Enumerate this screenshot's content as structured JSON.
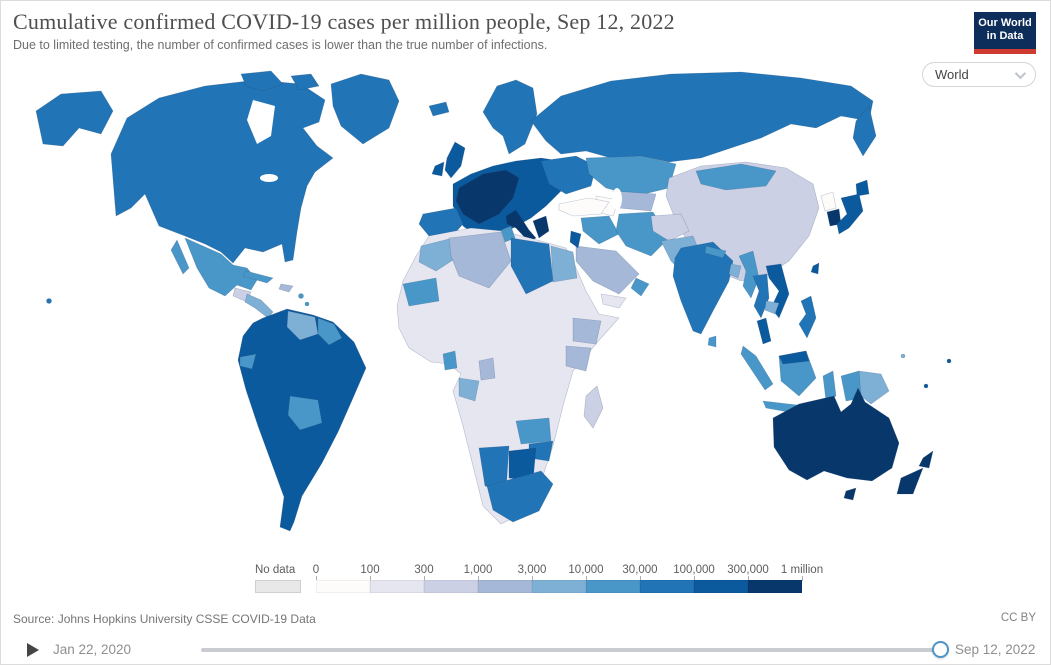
{
  "header": {
    "title": "Cumulative confirmed COVID-19 cases per million people, Sep 12, 2022",
    "subtitle": "Due to limited testing, the number of confirmed cases is lower than the true number of infections."
  },
  "logo": {
    "line1": "Our World",
    "line2": "in Data",
    "bg_color": "#0d2e5b",
    "accent_color": "#cf3a31"
  },
  "controls": {
    "region_selector_value": "World"
  },
  "footer": {
    "source": "Source: Johns Hopkins University CSSE COVID-19 Data",
    "license": "CC BY"
  },
  "timeline": {
    "start_label": "Jan 22, 2020",
    "end_label": "Sep 12, 2022",
    "position_pct": 100
  },
  "chart_data": {
    "type": "choropleth",
    "metric": "Cumulative confirmed COVID-19 cases per million people",
    "date": "Sep 12, 2022",
    "legend_ticks": [
      "0",
      "100",
      "300",
      "1,000",
      "3,000",
      "10,000",
      "30,000",
      "100,000",
      "300,000",
      "1 million"
    ],
    "no_data": {
      "label": "No data",
      "color": "#e8e8e8"
    },
    "bins": [
      {
        "range": "0-100",
        "color": "#fefcfb"
      },
      {
        "range": "100-300",
        "color": "#e6e6f1"
      },
      {
        "range": "300-1,000",
        "color": "#ccd0e5"
      },
      {
        "range": "1,000-3,000",
        "color": "#a6b8d8"
      },
      {
        "range": "3,000-10,000",
        "color": "#7eb0d6"
      },
      {
        "range": "10,000-30,000",
        "color": "#4897c8"
      },
      {
        "range": "30,000-100,000",
        "color": "#2174b5"
      },
      {
        "range": "100,000-300,000",
        "color": "#0c5a9e"
      },
      {
        "range": "300,000-1 million",
        "color": "#08386b"
      }
    ],
    "region_bins": {
      "alaska": 6,
      "canada-us": 6,
      "arctic-1": 6,
      "arctic-2": 6,
      "greenland": 6,
      "mexico": 5,
      "baja-california": 5,
      "guatemala": 2,
      "central-america": 4,
      "panama-costa-rica": 6,
      "cuba": 5,
      "hispaniola": 3,
      "caribbean-1": 5,
      "caribbean-2": 5,
      "hawaii": 6,
      "south-america": 7,
      "venezuela": 4,
      "guyanas": 5,
      "bolivia": 5,
      "ecuador": 5,
      "iceland": 6,
      "united-kingdom": 7,
      "ireland": 7,
      "scandinavia": 6,
      "europe-mainland": 7,
      "western-europe-core": 8,
      "italy": 8,
      "greece": 8,
      "iberia": 6,
      "eastern-europe": 6,
      "russia": 6,
      "kazakhstan": 5,
      "central-asia": 3,
      "turkmenistan": 0,
      "china": 2,
      "mongolia": 5,
      "turkey": 0,
      "iraq-syria": 5,
      "iran": 5,
      "saudi-arabia": 3,
      "israel-jordan": 7,
      "yemen": 1,
      "oman-uae": 5,
      "afghanistan": 2,
      "pakistan": 4,
      "india": 6,
      "nepal": 5,
      "bangladesh": 4,
      "sri-lanka": 5,
      "myanmar": 5,
      "thailand": 6,
      "vietnam-laos": 7,
      "cambodia": 4,
      "malaysia-peninsula": 7,
      "sumatra": 5,
      "borneo": 5,
      "borneo-malaysia": 7,
      "java": 5,
      "sulawesi": 5,
      "lesser-sunda": 5,
      "new-guinea-west": 5,
      "papua-new-guinea": 4,
      "philippines": 6,
      "north-korea": 0,
      "south-korea": 8,
      "japan-hokkaido": 7,
      "japan-honshu": 7,
      "taiwan": 7,
      "africa-base": 1,
      "morocco": 4,
      "algeria": 3,
      "tunisia": 5,
      "libya": 6,
      "egypt": 4,
      "mauritania": 5,
      "ghana": 5,
      "cameroon": 3,
      "gabon-congo": 4,
      "ethiopia": 3,
      "kenya": 3,
      "zambia": 5,
      "zimbabwe": 6,
      "namibia": 6,
      "botswana": 7,
      "south-africa": 6,
      "madagascar": 2,
      "australia": 8,
      "tasmania": 8,
      "new-zealand-north": 8,
      "new-zealand-south": 8,
      "solomon-islands": 4,
      "new-caledonia": 7,
      "fiji": 7
    }
  }
}
